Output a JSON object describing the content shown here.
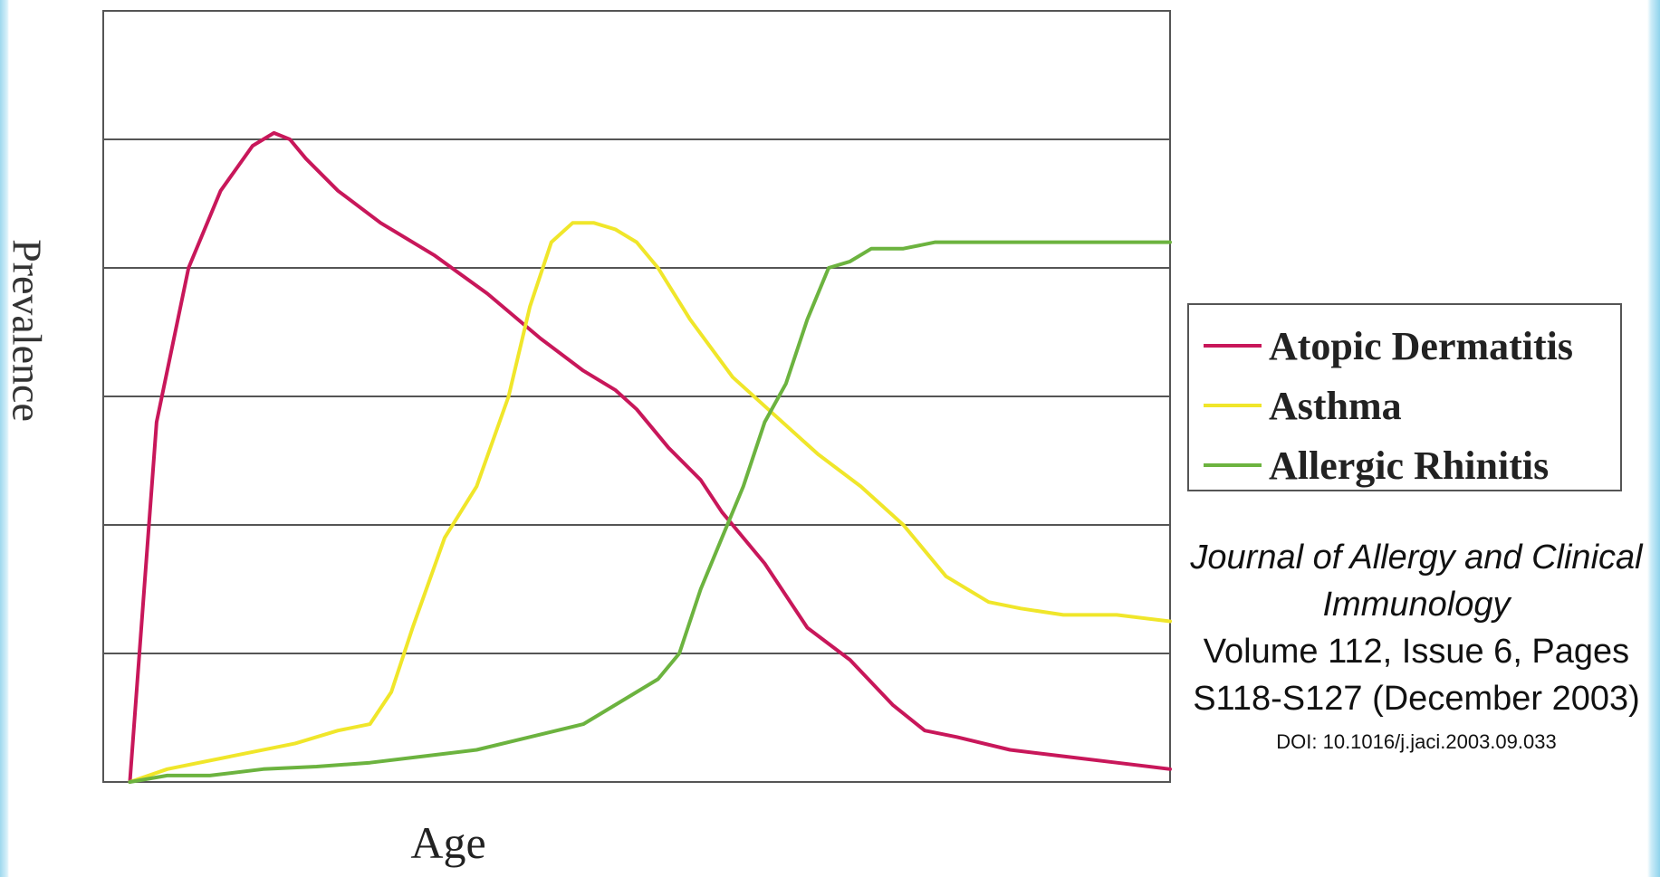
{
  "chart_data": {
    "type": "line",
    "xlabel": "Age",
    "ylabel": "Prevalence",
    "xlim": [
      0,
      100
    ],
    "ylim": [
      0,
      6
    ],
    "grid": true,
    "legend_position": "right",
    "series": [
      {
        "name": "Atopic Dermatitis",
        "color": "#c8175a",
        "x": [
          2.5,
          5,
          8,
          11,
          14,
          16,
          17.5,
          19,
          22,
          26,
          31,
          36,
          41,
          45,
          48,
          50,
          53,
          56,
          58,
          62,
          66,
          70,
          74,
          77,
          80,
          85,
          90,
          95,
          100
        ],
        "y": [
          0,
          2.8,
          4.0,
          4.6,
          4.95,
          5.05,
          5.0,
          4.85,
          4.6,
          4.35,
          4.1,
          3.8,
          3.45,
          3.2,
          3.05,
          2.9,
          2.6,
          2.35,
          2.1,
          1.7,
          1.2,
          0.95,
          0.6,
          0.4,
          0.35,
          0.25,
          0.2,
          0.15,
          0.1
        ]
      },
      {
        "name": "Asthma",
        "color": "#f0e62a",
        "x": [
          2.5,
          6,
          12,
          18,
          22,
          25,
          27,
          29,
          32,
          35,
          38,
          40,
          42,
          44,
          46,
          48,
          50,
          52,
          55,
          59,
          63,
          67,
          71,
          75,
          79,
          83,
          86,
          90,
          95,
          100
        ],
        "y": [
          0,
          0.1,
          0.2,
          0.3,
          0.4,
          0.45,
          0.7,
          1.2,
          1.9,
          2.3,
          3.0,
          3.7,
          4.2,
          4.35,
          4.35,
          4.3,
          4.2,
          4.0,
          3.6,
          3.15,
          2.85,
          2.55,
          2.3,
          2.0,
          1.6,
          1.4,
          1.35,
          1.3,
          1.3,
          1.25
        ]
      },
      {
        "name": "Allergic Rhinitis",
        "color": "#6cb33f",
        "x": [
          2.5,
          6,
          10,
          15,
          20,
          25,
          30,
          35,
          40,
          45,
          50,
          52,
          54,
          56,
          58,
          60,
          62,
          64,
          66,
          68,
          70,
          72,
          75,
          78,
          82,
          86,
          90,
          95,
          100
        ],
        "y": [
          0,
          0.05,
          0.05,
          0.1,
          0.12,
          0.15,
          0.2,
          0.25,
          0.35,
          0.45,
          0.7,
          0.8,
          1.0,
          1.5,
          1.9,
          2.3,
          2.8,
          3.1,
          3.6,
          4.0,
          4.05,
          4.15,
          4.15,
          4.2,
          4.2,
          4.2,
          4.2,
          4.2,
          4.2
        ]
      }
    ]
  },
  "citation": {
    "journal": "Journal of Allergy and Clinical Immunology",
    "volume": "Volume 112, Issue 6, Pages S118-S127 (December 2003)",
    "doi": "DOI: 10.1016/j.jaci.2003.09.033"
  }
}
